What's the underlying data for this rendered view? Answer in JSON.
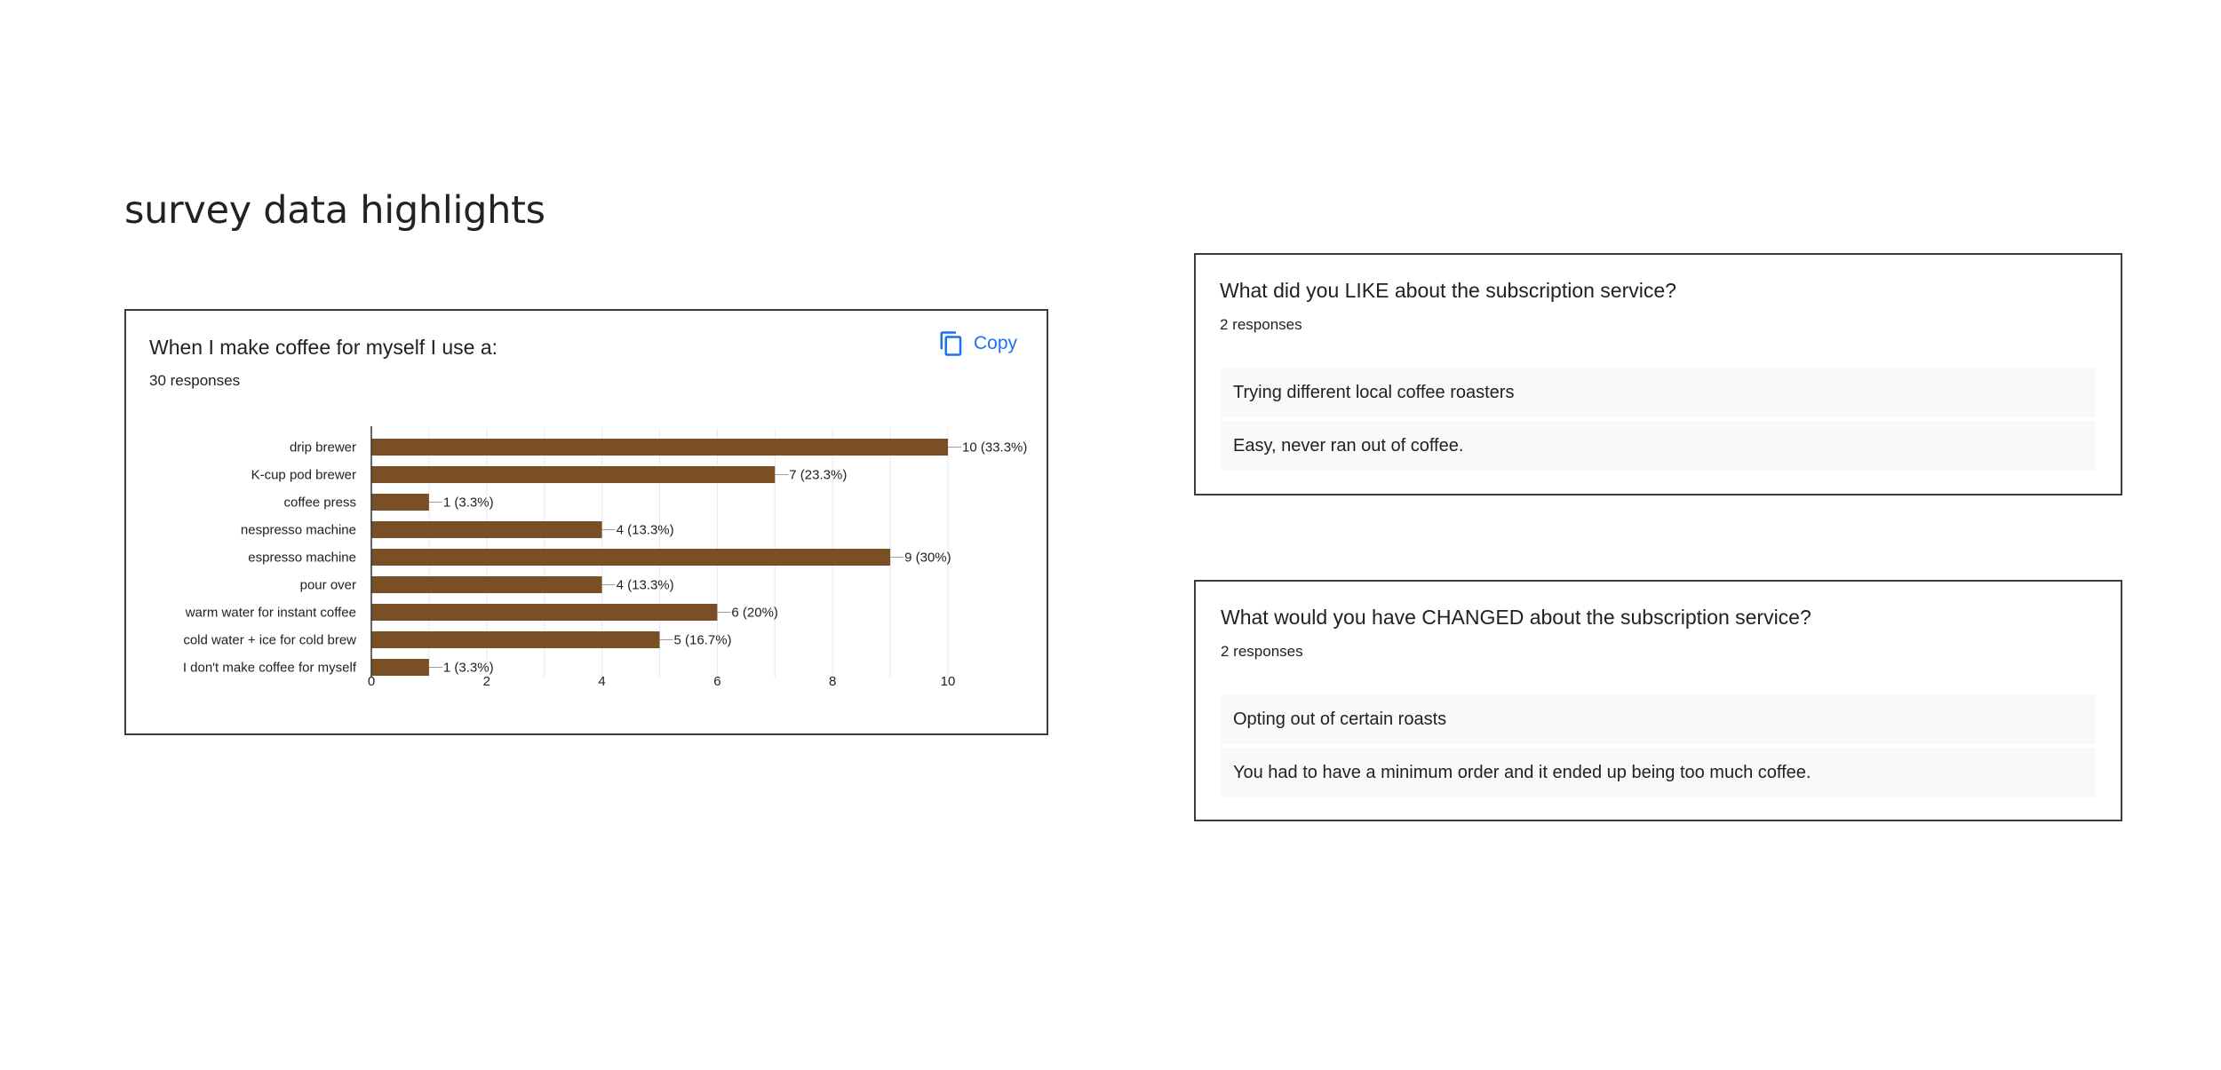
{
  "page": {
    "title": "survey data highlights"
  },
  "chart_card": {
    "question": "When I make coffee for myself I use a:",
    "responses": "30 responses",
    "copy_label": "Copy",
    "copy_icon": "copy-icon"
  },
  "chart_data": {
    "type": "bar",
    "orientation": "horizontal",
    "categories": [
      "drip brewer",
      "K-cup pod brewer",
      "coffee press",
      "nespresso machine",
      "espresso machine",
      "pour over",
      "warm water for instant coffee",
      "cold water + ice for cold brew",
      "I don't make coffee for myself"
    ],
    "values": [
      10,
      7,
      1,
      4,
      9,
      4,
      6,
      5,
      1
    ],
    "value_labels": [
      "10 (33.3%)",
      "7 (23.3%)",
      "1 (3.3%)",
      "4 (13.3%)",
      "9 (30%)",
      "4 (13.3%)",
      "6 (20%)",
      "5 (16.7%)",
      "1 (3.3%)"
    ],
    "xticks": [
      "0",
      "2",
      "4",
      "6",
      "8",
      "10"
    ],
    "xlim": [
      0,
      10
    ],
    "grid": true,
    "bar_color": "#7b4f25"
  },
  "like_card": {
    "question": "What did you LIKE about the subscription service?",
    "responses": "2 responses",
    "answers": [
      "Trying different local coffee roasters",
      "Easy, never ran out of coffee."
    ]
  },
  "changed_card": {
    "question": "What would you have CHANGED about the subscription service?",
    "responses": "2 responses",
    "answers": [
      "Opting out of certain roasts",
      "You had to have a minimum order and it ended up being too much coffee."
    ]
  }
}
